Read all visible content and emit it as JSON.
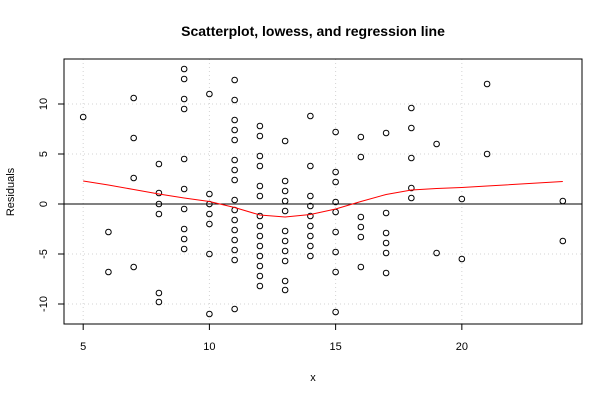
{
  "chart_data": {
    "type": "scatter",
    "title": "Scatterplot, lowess, and regression line",
    "xlabel": "x",
    "ylabel": "Residuals",
    "xlim": [
      4.24,
      24.76
    ],
    "ylim": [
      -12.0,
      14.5
    ],
    "x_ticks": [
      5,
      10,
      15,
      20
    ],
    "y_ticks": [
      -10,
      -5,
      0,
      5,
      10
    ],
    "x_tick_labels": [
      "5",
      "10",
      "15",
      "20"
    ],
    "y_tick_labels": [
      "-10",
      "-5",
      "0",
      "5",
      "10"
    ],
    "grid": true,
    "grid_color": "#d3d3d3",
    "point_color": "#000000",
    "lowess_color": "#ff0000",
    "regression_color": "#000000",
    "regression": {
      "slope": 0,
      "intercept": 0
    },
    "points": [
      [
        5,
        8.7
      ],
      [
        6,
        -2.8
      ],
      [
        6,
        -6.8
      ],
      [
        7,
        10.6
      ],
      [
        7,
        6.6
      ],
      [
        7,
        2.6
      ],
      [
        7,
        -6.3
      ],
      [
        8,
        4.0
      ],
      [
        8,
        1.1
      ],
      [
        8,
        0.0
      ],
      [
        8,
        -1.0
      ],
      [
        8,
        -8.9
      ],
      [
        8,
        -9.8
      ],
      [
        9,
        13.5
      ],
      [
        9,
        12.5
      ],
      [
        9,
        10.5
      ],
      [
        9,
        9.5
      ],
      [
        9,
        4.5
      ],
      [
        9,
        1.5
      ],
      [
        9,
        -0.5
      ],
      [
        9,
        -2.5
      ],
      [
        9,
        -3.5
      ],
      [
        9,
        -4.5
      ],
      [
        10,
        11.0
      ],
      [
        10,
        1.0
      ],
      [
        10,
        0.0
      ],
      [
        10,
        -1.0
      ],
      [
        10,
        -2.0
      ],
      [
        10,
        -5.0
      ],
      [
        10,
        -11.0
      ],
      [
        11,
        12.4
      ],
      [
        11,
        10.4
      ],
      [
        11,
        8.4
      ],
      [
        11,
        7.4
      ],
      [
        11,
        6.4
      ],
      [
        11,
        4.4
      ],
      [
        11,
        3.4
      ],
      [
        11,
        2.4
      ],
      [
        11,
        0.4
      ],
      [
        11,
        -0.6
      ],
      [
        11,
        -1.6
      ],
      [
        11,
        -2.6
      ],
      [
        11,
        -3.6
      ],
      [
        11,
        -4.6
      ],
      [
        11,
        -5.6
      ],
      [
        11,
        -10.5
      ],
      [
        12,
        7.8
      ],
      [
        12,
        6.8
      ],
      [
        12,
        4.8
      ],
      [
        12,
        3.8
      ],
      [
        12,
        1.8
      ],
      [
        12,
        0.8
      ],
      [
        12,
        -1.2
      ],
      [
        12,
        -2.2
      ],
      [
        12,
        -3.2
      ],
      [
        12,
        -4.2
      ],
      [
        12,
        -5.2
      ],
      [
        12,
        -6.2
      ],
      [
        12,
        -7.2
      ],
      [
        12,
        -8.2
      ],
      [
        13,
        6.3
      ],
      [
        13,
        2.3
      ],
      [
        13,
        1.3
      ],
      [
        13,
        0.3
      ],
      [
        13,
        -0.7
      ],
      [
        13,
        -2.7
      ],
      [
        13,
        -3.7
      ],
      [
        13,
        -4.7
      ],
      [
        13,
        -5.7
      ],
      [
        13,
        -7.7
      ],
      [
        13,
        -8.6
      ],
      [
        14,
        8.8
      ],
      [
        14,
        3.8
      ],
      [
        14,
        0.8
      ],
      [
        14,
        -0.2
      ],
      [
        14,
        -1.2
      ],
      [
        14,
        -2.2
      ],
      [
        14,
        -3.2
      ],
      [
        14,
        -4.2
      ],
      [
        14,
        -5.2
      ],
      [
        15,
        7.2
      ],
      [
        15,
        3.2
      ],
      [
        15,
        2.2
      ],
      [
        15,
        0.2
      ],
      [
        15,
        -0.8
      ],
      [
        15,
        -2.8
      ],
      [
        15,
        -4.8
      ],
      [
        15,
        -6.8
      ],
      [
        15,
        -10.8
      ],
      [
        16,
        6.7
      ],
      [
        16,
        4.7
      ],
      [
        16,
        -1.3
      ],
      [
        16,
        -2.3
      ],
      [
        16,
        -3.3
      ],
      [
        16,
        -6.3
      ],
      [
        17,
        7.1
      ],
      [
        17,
        -0.9
      ],
      [
        17,
        -2.9
      ],
      [
        17,
        -3.9
      ],
      [
        17,
        -4.9
      ],
      [
        17,
        -6.9
      ],
      [
        18,
        9.6
      ],
      [
        18,
        7.6
      ],
      [
        18,
        4.6
      ],
      [
        18,
        1.6
      ],
      [
        18,
        0.6
      ],
      [
        19,
        6.0
      ],
      [
        19,
        -4.9
      ],
      [
        20,
        0.5
      ],
      [
        20,
        -5.5
      ],
      [
        21,
        12.0
      ],
      [
        21,
        5.0
      ],
      [
        24,
        0.3
      ],
      [
        24,
        -3.7
      ]
    ],
    "lowess": [
      [
        5,
        2.3
      ],
      [
        6,
        1.9
      ],
      [
        7,
        1.45
      ],
      [
        8,
        1.0
      ],
      [
        9,
        0.6
      ],
      [
        10,
        0.25
      ],
      [
        11,
        -0.35
      ],
      [
        12,
        -1.1
      ],
      [
        13,
        -1.3
      ],
      [
        14,
        -1.05
      ],
      [
        15,
        -0.5
      ],
      [
        16,
        0.25
      ],
      [
        17,
        0.95
      ],
      [
        18,
        1.4
      ],
      [
        19,
        1.55
      ],
      [
        20,
        1.65
      ],
      [
        21,
        1.8
      ],
      [
        24,
        2.25
      ]
    ]
  }
}
